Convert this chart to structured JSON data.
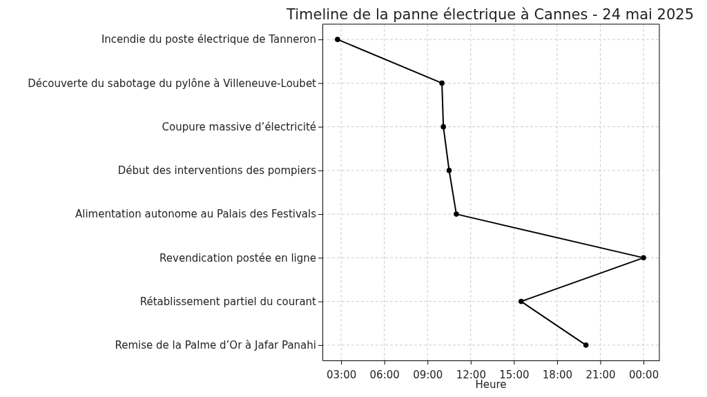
{
  "chart_data": {
    "type": "line",
    "orientation": "horizontal",
    "title": "Timeline de la panne électrique à Cannes - 24 mai 2025",
    "xlabel": "Heure",
    "categories": [
      "Incendie du poste électrique de Tanneron",
      "Découverte du sabotage du pylône à Villeneuve-Loubet",
      "Coupure massive d’électricité",
      "Début des interventions des pompiers",
      "Alimentation autonome au Palais des Festivals",
      "Revendication postée en ligne",
      "Rétablissement partiel du courant",
      "Remise de la Palme d’Or à Jafar Panahi"
    ],
    "series": [
      {
        "color": "#000000",
        "values": [
          2.75,
          10,
          10.1,
          10.5,
          11,
          24,
          15.5,
          20
        ]
      }
    ],
    "xlim": [
      1.7,
      25.1
    ],
    "xticks": [
      {
        "value": 3,
        "label": "03:00"
      },
      {
        "value": 6,
        "label": "06:00"
      },
      {
        "value": 9,
        "label": "09:00"
      },
      {
        "value": 12,
        "label": "12:00"
      },
      {
        "value": 15,
        "label": "15:00"
      },
      {
        "value": 18,
        "label": "18:00"
      },
      {
        "value": 21,
        "label": "21:00"
      },
      {
        "value": 24,
        "label": "00:00"
      }
    ],
    "grid": true,
    "marker": "circle",
    "line_style": "solid"
  }
}
